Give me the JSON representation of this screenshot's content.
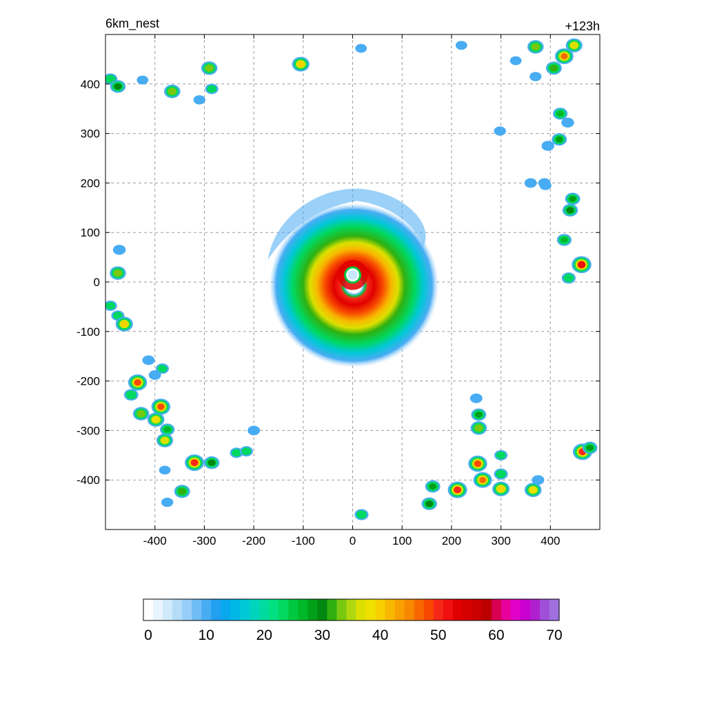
{
  "header": {
    "left_title": "6km_nest",
    "right_title": "+123h"
  },
  "chart_data": {
    "type": "heatmap",
    "title": "6km_nest",
    "time_label": "+123h",
    "xlim": [
      -500,
      500
    ],
    "ylim": [
      -500,
      500
    ],
    "x_ticks": [
      -400,
      -300,
      -200,
      -100,
      0,
      100,
      200,
      300,
      400
    ],
    "y_ticks": [
      -400,
      -300,
      -200,
      -100,
      0,
      100,
      200,
      300,
      400
    ],
    "x_tick_labels": [
      "-400",
      "-300",
      "-200",
      "-100",
      "0",
      "100",
      "200",
      "300",
      "400"
    ],
    "y_tick_labels": [
      "-400",
      "-300",
      "-200",
      "-100",
      "0",
      "100",
      "200",
      "300",
      "400"
    ],
    "grid": true,
    "grid_style": "dashed",
    "colorbar": {
      "orientation": "horizontal",
      "min": 0,
      "max": 70,
      "step": 2,
      "tick_values": [
        0,
        10,
        20,
        30,
        40,
        50,
        60,
        70
      ],
      "tick_labels": [
        "0",
        "10",
        "20",
        "30",
        "40",
        "50",
        "60",
        "70"
      ],
      "colors": [
        "#ffffff",
        "#e8f4fd",
        "#d0e9fb",
        "#b4dcf9",
        "#96cef7",
        "#70bdf5",
        "#48acf3",
        "#22a0f0",
        "#0aa8ec",
        "#00b8e6",
        "#00c8d6",
        "#00d4bc",
        "#00dca0",
        "#00e080",
        "#00d860",
        "#00c840",
        "#00b828",
        "#00a018",
        "#008810",
        "#30b010",
        "#78c810",
        "#b0d810",
        "#dce000",
        "#f0e000",
        "#f8d000",
        "#f8b800",
        "#f8a000",
        "#f88800",
        "#f86800",
        "#f84800",
        "#f82818",
        "#f01010",
        "#e00000",
        "#d40000",
        "#c80000",
        "#bc0000",
        "#d80050",
        "#e8009c",
        "#e000c8",
        "#c800d0",
        "#b020d0",
        "#a050d8",
        "#a070e0"
      ]
    },
    "storm": {
      "center": [
        0,
        10
      ],
      "eye_radius": 18,
      "eyewall_peak": 55,
      "rain_shield_radius": 175
    },
    "cells": [
      {
        "x": -490,
        "y": 410,
        "v": 22
      },
      {
        "x": -475,
        "y": 395,
        "v": 30
      },
      {
        "x": -290,
        "y": 432,
        "v": 34
      },
      {
        "x": -105,
        "y": 440,
        "v": 40
      },
      {
        "x": -365,
        "y": 385,
        "v": 34
      },
      {
        "x": -285,
        "y": 390,
        "v": 18
      },
      {
        "x": -310,
        "y": 368,
        "v": 12
      },
      {
        "x": 370,
        "y": 475,
        "v": 34
      },
      {
        "x": 448,
        "y": 478,
        "v": 36
      },
      {
        "x": 428,
        "y": 456,
        "v": 46
      },
      {
        "x": 407,
        "y": 432,
        "v": 32
      },
      {
        "x": 420,
        "y": 340,
        "v": 26
      },
      {
        "x": 435,
        "y": 322,
        "v": 16
      },
      {
        "x": 418,
        "y": 288,
        "v": 28
      },
      {
        "x": 395,
        "y": 275,
        "v": 16
      },
      {
        "x": 360,
        "y": 200,
        "v": 14
      },
      {
        "x": 388,
        "y": 200,
        "v": 14
      },
      {
        "x": 390,
        "y": 195,
        "v": 12
      },
      {
        "x": 370,
        "y": 415,
        "v": 12
      },
      {
        "x": 445,
        "y": 168,
        "v": 28
      },
      {
        "x": 440,
        "y": 145,
        "v": 30
      },
      {
        "x": 428,
        "y": 85,
        "v": 26
      },
      {
        "x": 463,
        "y": 35,
        "v": 52
      },
      {
        "x": 437,
        "y": 8,
        "v": 22
      },
      {
        "x": -472,
        "y": 65,
        "v": 16
      },
      {
        "x": -475,
        "y": 18,
        "v": 34
      },
      {
        "x": -490,
        "y": -48,
        "v": 18
      },
      {
        "x": -475,
        "y": -68,
        "v": 18
      },
      {
        "x": -462,
        "y": -85,
        "v": 40
      },
      {
        "x": -435,
        "y": -203,
        "v": 48
      },
      {
        "x": -448,
        "y": -228,
        "v": 24
      },
      {
        "x": -413,
        "y": -158,
        "v": 14
      },
      {
        "x": -385,
        "y": -175,
        "v": 18
      },
      {
        "x": -400,
        "y": -188,
        "v": 14
      },
      {
        "x": -388,
        "y": -252,
        "v": 48
      },
      {
        "x": -398,
        "y": -278,
        "v": 38
      },
      {
        "x": -428,
        "y": -266,
        "v": 34
      },
      {
        "x": -380,
        "y": -320,
        "v": 36
      },
      {
        "x": -375,
        "y": -298,
        "v": 26
      },
      {
        "x": -320,
        "y": -365,
        "v": 50
      },
      {
        "x": -285,
        "y": -365,
        "v": 30
      },
      {
        "x": -235,
        "y": -345,
        "v": 18
      },
      {
        "x": -215,
        "y": -342,
        "v": 18
      },
      {
        "x": -200,
        "y": -300,
        "v": 14
      },
      {
        "x": -345,
        "y": -423,
        "v": 32
      },
      {
        "x": -375,
        "y": -445,
        "v": 12
      },
      {
        "x": -380,
        "y": -380,
        "v": 10
      },
      {
        "x": 18,
        "y": -470,
        "v": 22
      },
      {
        "x": 155,
        "y": -448,
        "v": 30
      },
      {
        "x": 162,
        "y": -413,
        "v": 28
      },
      {
        "x": 212,
        "y": -420,
        "v": 50
      },
      {
        "x": 253,
        "y": -367,
        "v": 48
      },
      {
        "x": 263,
        "y": -400,
        "v": 46
      },
      {
        "x": 255,
        "y": -295,
        "v": 34
      },
      {
        "x": 255,
        "y": -268,
        "v": 28
      },
      {
        "x": 250,
        "y": -235,
        "v": 14
      },
      {
        "x": 300,
        "y": -350,
        "v": 18
      },
      {
        "x": 300,
        "y": -388,
        "v": 22
      },
      {
        "x": 300,
        "y": -418,
        "v": 40
      },
      {
        "x": 365,
        "y": -420,
        "v": 38
      },
      {
        "x": 375,
        "y": -400,
        "v": 14
      },
      {
        "x": 465,
        "y": -343,
        "v": 50
      },
      {
        "x": 480,
        "y": -335,
        "v": 28
      },
      {
        "x": 298,
        "y": 305,
        "v": 12
      },
      {
        "x": 220,
        "y": 478,
        "v": 10
      },
      {
        "x": 17,
        "y": 472,
        "v": 10
      },
      {
        "x": -425,
        "y": 408,
        "v": 10
      },
      {
        "x": 330,
        "y": 447,
        "v": 10
      }
    ]
  }
}
